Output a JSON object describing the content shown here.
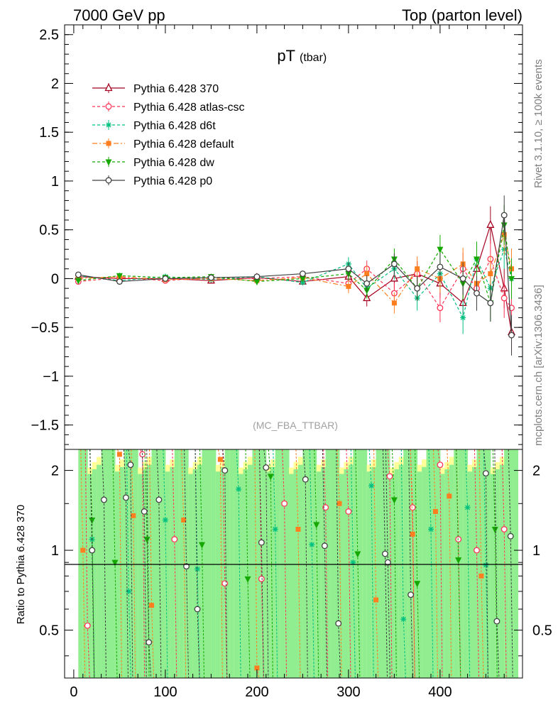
{
  "header": {
    "left": "7000 GeV pp",
    "right": "Top (parton level)"
  },
  "side_labels": {
    "rivet": "Rivet 3.1.10, ≥ 100k events",
    "mcplots": "mcplots.cern.ch [arXiv:1306.3436]"
  },
  "colors": {
    "p370": "#a5001e",
    "atlas_csc": "#ff3355",
    "d6t": "#00c080",
    "default": "#ff7f20",
    "dw": "#14a800",
    "p0": "#404040",
    "band_yellow": "#ffff99",
    "band_green": "#90ee90"
  },
  "chart_data": [
    {
      "type": "line",
      "title": "pT",
      "title_sub": "(tbar)",
      "watermark": "(MC_FBA_TTBAR)",
      "xlim": [
        -10,
        490
      ],
      "ylim": [
        -1.75,
        2.6
      ],
      "yticks": [
        -1.5,
        -1,
        -0.5,
        0,
        0.5,
        1,
        1.5,
        2,
        2.5
      ],
      "ytick_labels": [
        "−1.5",
        "−1",
        "−0.5",
        "0",
        "0.5",
        "1",
        "1.5",
        "2",
        "2.5"
      ],
      "legend_position": "top-left",
      "series": [
        {
          "name": "Pythia 6.428 370",
          "color_key": "p370",
          "marker": "triangle-open",
          "dash": "solid",
          "x": [
            5,
            50,
            100,
            150,
            200,
            250,
            300,
            320,
            350,
            375,
            400,
            425,
            440,
            455,
            470,
            478
          ],
          "y": [
            0.02,
            0.0,
            0.0,
            -0.02,
            0.01,
            -0.03,
            0.02,
            -0.2,
            0.0,
            0.05,
            -0.05,
            -0.25,
            0.1,
            0.55,
            -0.1,
            -0.55
          ]
        },
        {
          "name": "Pythia 6.428 atlas-csc",
          "color_key": "atlas_csc",
          "marker": "circle-open",
          "dash": "dash",
          "x": [
            5,
            50,
            100,
            150,
            200,
            250,
            300,
            320,
            350,
            375,
            400,
            425,
            440,
            455,
            470,
            478
          ],
          "y": [
            -0.03,
            0.01,
            -0.02,
            0.01,
            0.0,
            0.02,
            -0.05,
            0.1,
            -0.15,
            0.05,
            -0.3,
            0.1,
            -0.1,
            0.2,
            -0.2,
            -0.3
          ]
        },
        {
          "name": "Pythia 6.428 d6t",
          "color_key": "d6t",
          "marker": "star",
          "dash": "dash",
          "x": [
            5,
            50,
            100,
            150,
            200,
            250,
            300,
            320,
            350,
            375,
            400,
            425,
            440,
            455,
            470,
            478
          ],
          "y": [
            0.03,
            -0.02,
            0.02,
            -0.01,
            0.02,
            -0.04,
            0.15,
            -0.1,
            0.1,
            -0.2,
            0.05,
            -0.4,
            0.2,
            -0.1,
            0.3,
            0.0
          ]
        },
        {
          "name": "Pythia 6.428 default",
          "color_key": "default",
          "marker": "square",
          "dash": "dashdot",
          "x": [
            5,
            50,
            100,
            150,
            200,
            250,
            300,
            320,
            350,
            375,
            400,
            425,
            440,
            455,
            470,
            478
          ],
          "y": [
            0.0,
            0.02,
            -0.01,
            0.0,
            -0.02,
            0.01,
            -0.08,
            0.05,
            -0.25,
            0.1,
            0.0,
            0.15,
            -0.05,
            0.05,
            0.45,
            0.1
          ]
        },
        {
          "name": "Pythia 6.428 dw",
          "color_key": "dw",
          "marker": "triangle-down",
          "dash": "dash",
          "x": [
            5,
            50,
            100,
            150,
            200,
            250,
            300,
            320,
            350,
            375,
            400,
            425,
            440,
            455,
            470,
            478
          ],
          "y": [
            -0.02,
            0.03,
            0.01,
            0.02,
            -0.03,
            0.0,
            0.05,
            -0.12,
            0.2,
            -0.1,
            0.3,
            -0.05,
            0.2,
            -0.25,
            0.55,
            0.0
          ]
        },
        {
          "name": "Pythia 6.428 p0",
          "color_key": "p0",
          "marker": "circle-open",
          "dash": "solid",
          "x": [
            5,
            50,
            100,
            150,
            200,
            250,
            300,
            320,
            350,
            375,
            400,
            425,
            440,
            455,
            470,
            478
          ],
          "y": [
            0.04,
            -0.03,
            0.0,
            0.01,
            0.02,
            0.05,
            0.1,
            -0.05,
            0.15,
            -0.1,
            0.12,
            0.0,
            -0.15,
            -0.25,
            0.65,
            -0.58
          ]
        }
      ]
    },
    {
      "type": "line",
      "ylabel": "Ratio to Pythia 6.428 370",
      "xlim": [
        -10,
        490
      ],
      "ylim": [
        0.33,
        2.4
      ],
      "yscale": "log",
      "reference": 1,
      "yticks": [
        0.5,
        1,
        2
      ],
      "ytick_labels": [
        "0.5",
        "1",
        "2"
      ],
      "xticks": [
        0,
        100,
        200,
        300,
        400
      ],
      "xtick_labels": [
        "0",
        "100",
        "200",
        "300",
        "400"
      ],
      "series": [
        {
          "name": "Pythia 6.428 atlas-csc",
          "color_key": "atlas_csc",
          "marker": "circle-open",
          "x": [
            15,
            75,
            110,
            165,
            205,
            230,
            275,
            300,
            345,
            370,
            400,
            420,
            440,
            470
          ],
          "y": [
            0.52,
            2.3,
            1.1,
            0.75,
            0.78,
            1.5,
            1.45,
            1.4,
            1.9,
            1.45,
            2.1,
            1.1,
            1.0,
            1.2
          ]
        },
        {
          "name": "Pythia 6.428 d6t",
          "color_key": "d6t",
          "marker": "star",
          "x": [
            20,
            60,
            100,
            135,
            180,
            220,
            260,
            305,
            325,
            360,
            390,
            430,
            450
          ],
          "y": [
            1.1,
            0.7,
            1.3,
            0.85,
            1.7,
            1.2,
            1.05,
            0.9,
            1.75,
            0.55,
            1.2,
            1.45,
            0.88
          ]
        },
        {
          "name": "Pythia 6.428 default",
          "color_key": "default",
          "marker": "square",
          "x": [
            10,
            50,
            65,
            85,
            120,
            160,
            200,
            245,
            290,
            330,
            370,
            395,
            410,
            445
          ],
          "y": [
            1.0,
            2.3,
            1.35,
            0.62,
            1.3,
            2.2,
            0.36,
            1.2,
            1.5,
            0.65,
            1.15,
            1.4,
            1.6,
            0.8
          ]
        },
        {
          "name": "Pythia 6.428 dw",
          "color_key": "dw",
          "marker": "triangle-down",
          "x": [
            20,
            45,
            80,
            140,
            190,
            215,
            265,
            310,
            350,
            375,
            420,
            460
          ],
          "y": [
            1.3,
            0.9,
            1.1,
            1.05,
            0.78,
            1.9,
            1.25,
            0.97,
            1.55,
            0.75,
            0.92,
            1.2
          ]
        },
        {
          "name": "Pythia 6.428 p0",
          "color_key": "p0",
          "marker": "circle-open",
          "x": [
            20,
            33,
            57,
            62,
            77,
            82,
            93,
            123,
            135,
            165,
            205,
            210,
            253,
            274,
            289,
            340,
            343,
            368,
            450,
            462,
            477
          ],
          "y": [
            1.0,
            1.55,
            1.58,
            2.1,
            1.4,
            0.45,
            1.55,
            0.87,
            0.6,
            2.0,
            1.07,
            2.05,
            1.85,
            1.04,
            0.53,
            0.97,
            0.9,
            0.68,
            1.95,
            0.54,
            1.13
          ]
        }
      ]
    }
  ]
}
